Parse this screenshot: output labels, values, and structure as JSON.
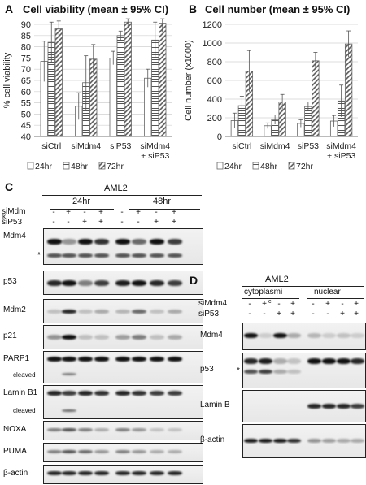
{
  "panels": {
    "A": {
      "letter": "A",
      "title": "Cell viability (mean ± 95% CI)"
    },
    "B": {
      "letter": "B",
      "title": "Cell number (mean ± 95% CI)"
    },
    "C": {
      "letter": "C",
      "cell_line": "AML2",
      "time_groups": [
        "24hr",
        "48hr"
      ],
      "row_labels": [
        "siMdm",
        "siP53"
      ],
      "simdm_signs": [
        "-",
        "+",
        "-",
        "+",
        "-",
        "+",
        "-",
        "+"
      ],
      "sip53_signs": [
        "-",
        "-",
        "+",
        "+",
        "-",
        "-",
        "+",
        "+"
      ],
      "blots": [
        "Mdm4",
        "p53",
        "Mdm2",
        "p21",
        "PARP1",
        "Lamin B1",
        "NOXA",
        "PUMA",
        "β-actin"
      ],
      "sub_labels": {
        "parp": "cleaved",
        "lamin": "cleaved"
      },
      "marker_asterisk": "*",
      "marker_ktext": "k"
    },
    "D": {
      "letter": "D",
      "cell_line": "AML2",
      "fractions": [
        "cytoplasmi",
        "nuclear"
      ],
      "row_labels": [
        "siMdm4",
        "siP53"
      ],
      "simdm_signs": [
        "-",
        "+",
        "-",
        "+",
        "-",
        "+",
        "-",
        "+"
      ],
      "sip53_signs": [
        "-",
        "-",
        "+",
        "+",
        "-",
        "-",
        "+",
        "+"
      ],
      "extra_mark": "c",
      "blots": [
        "Mdm4",
        "p53",
        "Lamin B",
        "β-actin"
      ],
      "marker_asterisk": "*"
    }
  },
  "chart_data": [
    {
      "type": "bar",
      "title": "Cell viability (mean ± 95% CI)",
      "ylabel": "% cell viability",
      "categories": [
        "siCtrl",
        "siMdm4",
        "siP53",
        "siMdm4 + siP53"
      ],
      "ylim": [
        40,
        90
      ],
      "yticks": [
        40,
        45,
        50,
        55,
        60,
        65,
        70,
        75,
        80,
        85,
        90
      ],
      "series": [
        {
          "name": "24hr",
          "values": [
            73.5,
            53.5,
            75,
            66
          ],
          "err": [
            9,
            6,
            3,
            4
          ]
        },
        {
          "name": "48hr",
          "values": [
            82,
            64,
            85,
            83
          ],
          "err": [
            9,
            12,
            2,
            8
          ]
        },
        {
          "name": "72hr",
          "values": [
            88,
            74.5,
            91,
            90.5
          ],
          "err": [
            3.5,
            6.5,
            2,
            4
          ]
        }
      ],
      "legend_position": "bottom"
    },
    {
      "type": "bar",
      "title": "Cell number (mean ± 95% CI)",
      "ylabel": "Cell number (x1000)",
      "categories": [
        "siCtrl",
        "siMdm4",
        "siP53",
        "siMdm4 + siP53"
      ],
      "ylim": [
        0,
        1200
      ],
      "yticks": [
        0,
        200,
        400,
        600,
        800,
        1000,
        1200
      ],
      "series": [
        {
          "name": "24hr",
          "values": [
            170,
            115,
            140,
            165
          ],
          "err": [
            80,
            30,
            40,
            60
          ]
        },
        {
          "name": "48hr",
          "values": [
            330,
            180,
            320,
            380
          ],
          "err": [
            100,
            50,
            50,
            170
          ]
        },
        {
          "name": "72hr",
          "values": [
            700,
            370,
            810,
            990
          ],
          "err": [
            220,
            80,
            90,
            140
          ]
        }
      ],
      "legend_position": "bottom"
    }
  ]
}
